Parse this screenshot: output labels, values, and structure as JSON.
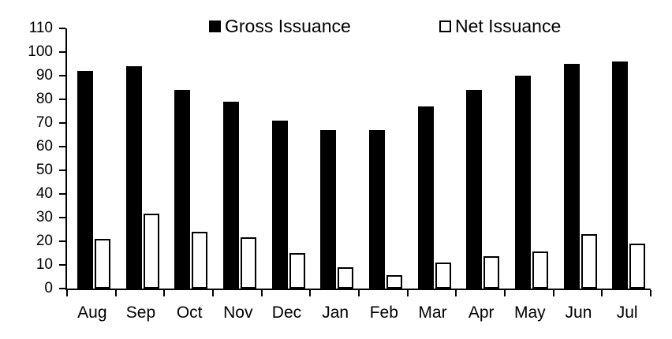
{
  "chart_data": {
    "type": "bar",
    "title": "",
    "xlabel": "",
    "ylabel": "",
    "categories": [
      "Aug",
      "Sep",
      "Oct",
      "Nov",
      "Dec",
      "Jan",
      "Feb",
      "Mar",
      "Apr",
      "May",
      "Jun",
      "Jul"
    ],
    "series": [
      {
        "name": "Gross Issuance",
        "style": "solid",
        "fill_color": "#000000",
        "values": [
          92,
          94,
          84,
          79,
          71,
          67,
          67,
          77,
          84,
          90,
          95,
          96
        ]
      },
      {
        "name": "Net Issuance",
        "style": "outline",
        "fill_color": "#ffffff",
        "border_color": "#000000",
        "values": [
          21,
          31.5,
          24,
          21.5,
          15,
          9,
          5.5,
          11,
          13.5,
          15.5,
          23,
          19
        ]
      }
    ],
    "ylim": [
      0,
      110
    ],
    "ytick_step": 10,
    "yticks": [
      "0",
      "10",
      "20",
      "30",
      "40",
      "50",
      "60",
      "70",
      "80",
      "90",
      "100",
      "110"
    ],
    "grid": false,
    "legend_position": "top"
  },
  "colors": {
    "background": "#ffffff",
    "axis": "#000000",
    "text": "#000000"
  }
}
